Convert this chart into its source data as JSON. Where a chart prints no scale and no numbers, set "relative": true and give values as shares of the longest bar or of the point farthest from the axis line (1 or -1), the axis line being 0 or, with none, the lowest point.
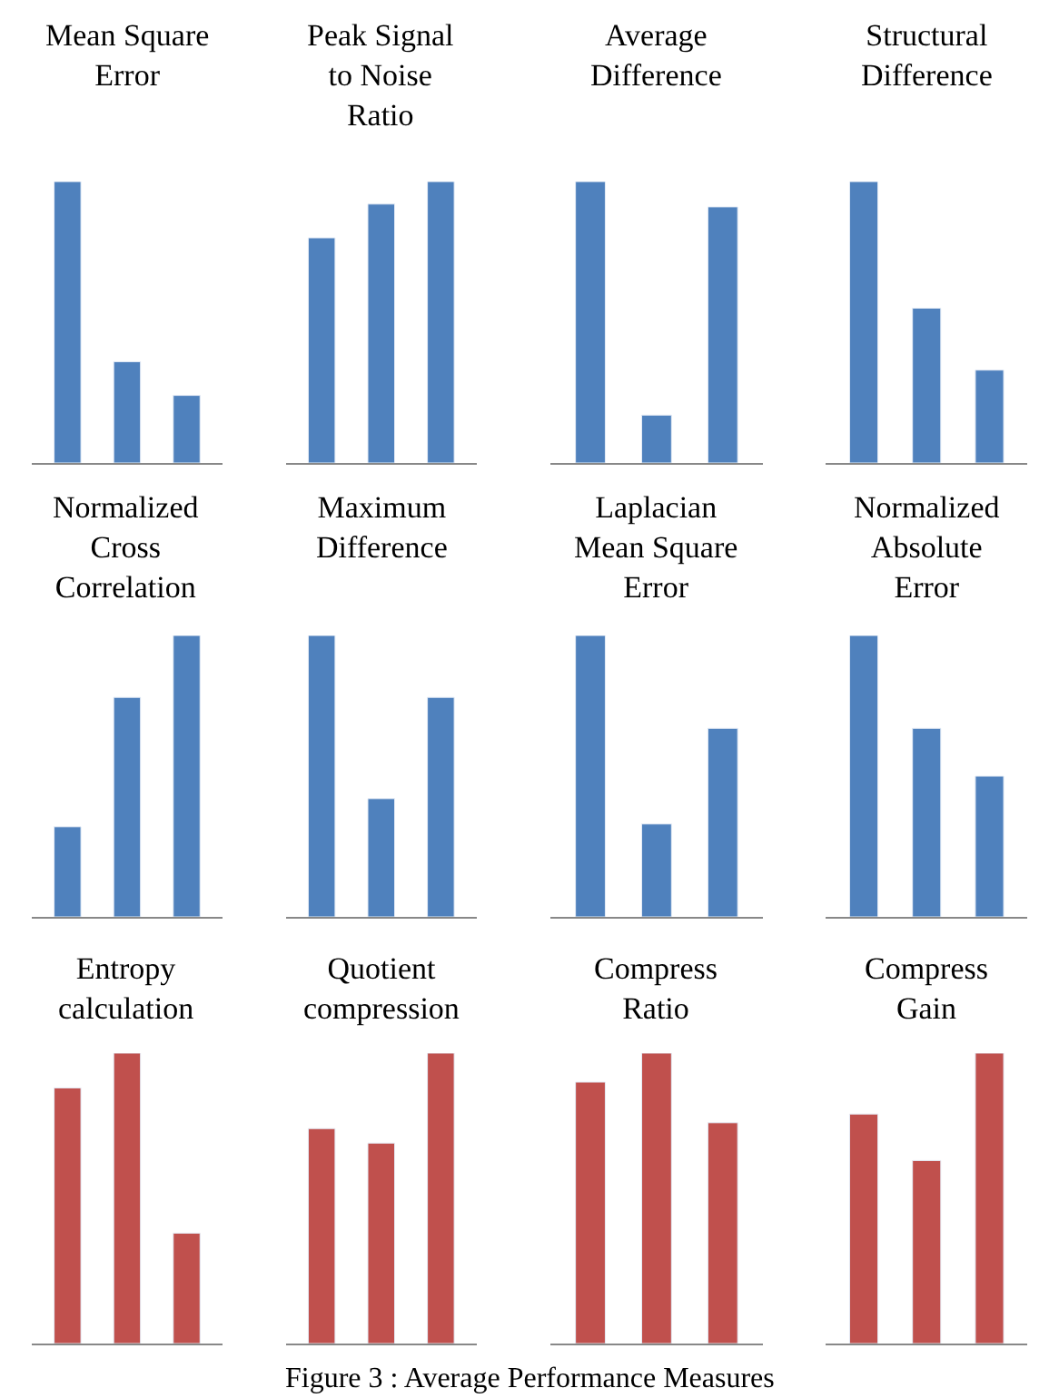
{
  "chart_data": [
    {
      "type": "bar",
      "title": "Mean Square Error",
      "relative": true,
      "categories": [
        null,
        null,
        null
      ],
      "values": [
        1,
        0.36,
        0.24
      ],
      "color": "#4f81bd"
    },
    {
      "type": "bar",
      "title": "Peak Signal to Noise Ratio",
      "relative": true,
      "categories": [
        null,
        null,
        null
      ],
      "values": [
        0.8,
        0.92,
        1
      ],
      "color": "#4f81bd"
    },
    {
      "type": "bar",
      "title": "Average Difference",
      "relative": true,
      "categories": [
        null,
        null,
        null
      ],
      "values": [
        1,
        0.17,
        0.91
      ],
      "color": "#4f81bd"
    },
    {
      "type": "bar",
      "title": "Structural Difference",
      "relative": true,
      "categories": [
        null,
        null,
        null
      ],
      "values": [
        1,
        0.55,
        0.33
      ],
      "color": "#4f81bd"
    },
    {
      "type": "bar",
      "title": "Normalized Cross Correlation",
      "relative": true,
      "categories": [
        null,
        null,
        null
      ],
      "values": [
        0.32,
        0.78,
        1
      ],
      "color": "#4f81bd"
    },
    {
      "type": "bar",
      "title": "Maximum Difference",
      "relative": true,
      "categories": [
        null,
        null,
        null
      ],
      "values": [
        1,
        0.42,
        0.78
      ],
      "color": "#4f81bd"
    },
    {
      "type": "bar",
      "title": "Laplacian Mean Square Error",
      "relative": true,
      "categories": [
        null,
        null,
        null
      ],
      "values": [
        1,
        0.33,
        0.67
      ],
      "color": "#4f81bd"
    },
    {
      "type": "bar",
      "title": "Normalized Absolute Error",
      "relative": true,
      "categories": [
        null,
        null,
        null
      ],
      "values": [
        1,
        0.67,
        0.5
      ],
      "color": "#4f81bd"
    },
    {
      "type": "bar",
      "title": "Entropy calculation",
      "relative": true,
      "categories": [
        null,
        null,
        null
      ],
      "values": [
        0.88,
        1,
        0.38
      ],
      "color": "#c0504d"
    },
    {
      "type": "bar",
      "title": "Quotient compression",
      "relative": true,
      "categories": [
        null,
        null,
        null
      ],
      "values": [
        0.74,
        0.69,
        1
      ],
      "color": "#c0504d"
    },
    {
      "type": "bar",
      "title": "Compress Ratio",
      "relative": true,
      "categories": [
        null,
        null,
        null
      ],
      "values": [
        0.9,
        1,
        0.76
      ],
      "color": "#c0504d"
    },
    {
      "type": "bar",
      "title": "Compress Gain",
      "relative": true,
      "categories": [
        null,
        null,
        null
      ],
      "values": [
        0.79,
        0.63,
        1
      ],
      "color": "#c0504d",
      "annotations": [
        "Figure 3 : Average Performance Measures"
      ]
    }
  ]
}
